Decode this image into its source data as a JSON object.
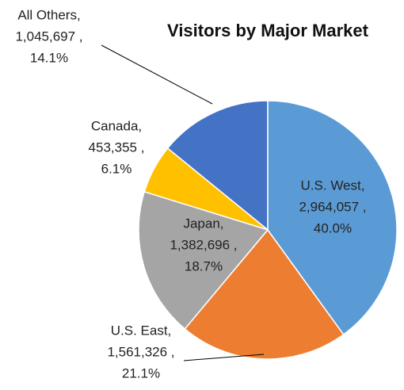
{
  "chart_data": {
    "type": "pie",
    "title": "Visitors by Major Market",
    "categories": [
      "U.S. West,",
      "U.S. East,",
      "Japan,",
      "Canada,",
      "All Others,"
    ],
    "values": [
      2964057,
      1561326,
      1382696,
      453355,
      1045697
    ],
    "value_labels": [
      "2,964,057 ,",
      "1,561,326 ,",
      "1,382,696 ,",
      "453,355 ,",
      "1,045,697 ,"
    ],
    "percents": [
      40.0,
      21.1,
      18.7,
      6.1,
      14.1
    ],
    "percent_labels": [
      "40.0%",
      "21.1%",
      "18.7%",
      "6.1%",
      "14.1%"
    ],
    "colors": [
      "#5b9bd5",
      "#ed7d31",
      "#a5a5a5",
      "#ffc000",
      "#4472c4"
    ]
  }
}
